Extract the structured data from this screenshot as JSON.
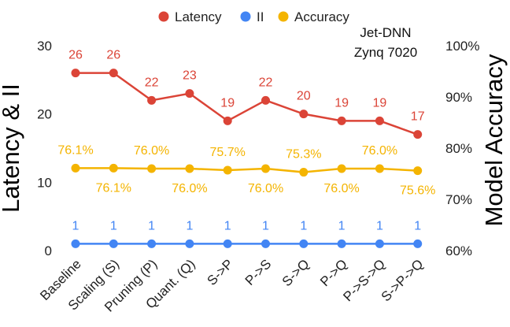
{
  "chart_data": {
    "type": "line",
    "categories": [
      "Baseline",
      "Scaling (S)",
      "Pruning (P)",
      "Quant. (Q)",
      "S->P",
      "P->S",
      "S->Q",
      "P->Q",
      "P->S->Q",
      "S->P->Q"
    ],
    "series": [
      {
        "name": "Latency",
        "axis": "left",
        "color": "#db4437",
        "values": [
          26,
          26,
          22,
          23,
          19,
          22,
          20,
          19,
          19,
          17
        ],
        "labels": [
          "26",
          "26",
          "22",
          "23",
          "19",
          "22",
          "20",
          "19",
          "19",
          "17"
        ]
      },
      {
        "name": "II",
        "axis": "left",
        "color": "#4285f4",
        "values": [
          1,
          1,
          1,
          1,
          1,
          1,
          1,
          1,
          1,
          1
        ],
        "labels": [
          "1",
          "1",
          "1",
          "1",
          "1",
          "1",
          "1",
          "1",
          "1",
          "1"
        ]
      },
      {
        "name": "Accuracy",
        "axis": "right",
        "color": "#f4b400",
        "values": [
          76.1,
          76.1,
          76.0,
          76.0,
          75.7,
          76.0,
          75.3,
          76.0,
          76.0,
          75.6
        ],
        "labels": [
          "76.1%",
          "76.1%",
          "76.0%",
          "76.0%",
          "75.7%",
          "76.0%",
          "75.3%",
          "76.0%",
          "76.0%",
          "75.6%"
        ]
      }
    ],
    "ylabel": "Latency & II",
    "y2label": "Model Accuracy",
    "ylim": [
      0,
      30
    ],
    "yticks": [
      "0",
      "10",
      "20",
      "30"
    ],
    "yticks_values": [
      0,
      10,
      20,
      30
    ],
    "y2lim": [
      60,
      100
    ],
    "y2ticks": [
      "60%",
      "70%",
      "80%",
      "90%",
      "100%"
    ],
    "y2ticks_values": [
      60,
      70,
      80,
      90,
      100
    ],
    "annotation": [
      "Jet-DNN",
      "Zynq 7020"
    ],
    "legend": [
      "Latency",
      "II",
      "Accuracy"
    ],
    "legend_position": "top-center",
    "grid": false
  }
}
